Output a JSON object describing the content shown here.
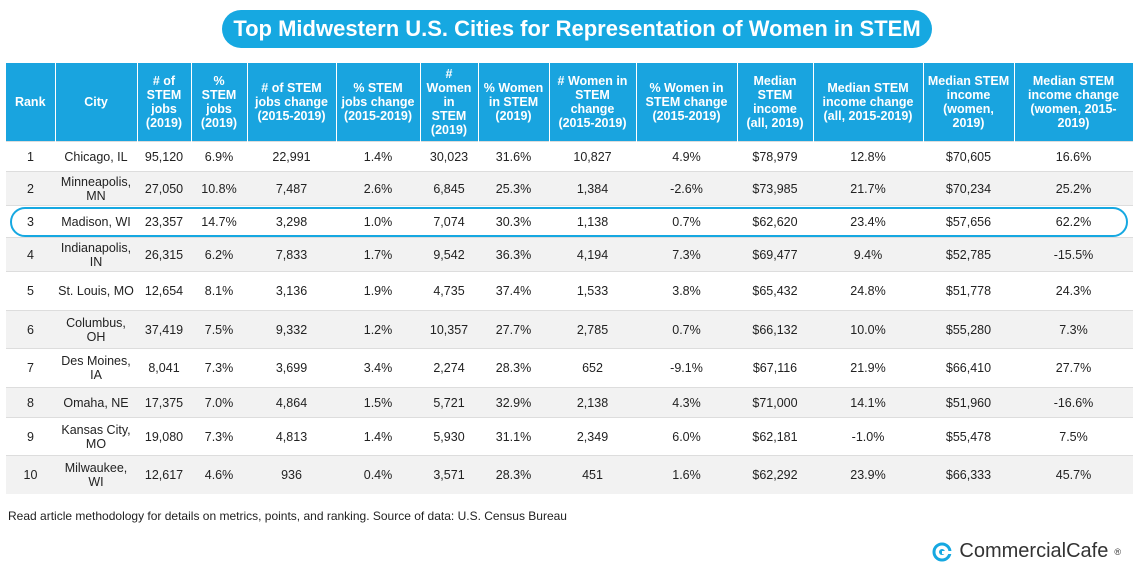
{
  "title": "Top Midwestern U.S. Cities for Representation of Women in STEM",
  "table": {
    "header": [
      "Rank",
      "City",
      "# of STEM jobs (2019)",
      "% STEM jobs (2019)",
      "# of STEM jobs change (2015-2019)",
      "% STEM jobs change (2015-2019)",
      "# Women in STEM (2019)",
      "% Women in STEM (2019)",
      "# Women in STEM change (2015-2019)",
      "% Women in STEM change (2015-2019)",
      "Median STEM income (all, 2019)",
      "Median STEM income change (all, 2015-2019)",
      "Median STEM income (women, 2019)",
      "Median STEM income change (women, 2015-2019)"
    ],
    "rows": [
      [
        "1",
        "Chicago, IL",
        "95,120",
        "6.9%",
        "22,991",
        "1.4%",
        "30,023",
        "31.6%",
        "10,827",
        "4.9%",
        "$78,979",
        "12.8%",
        "$70,605",
        "16.6%"
      ],
      [
        "2",
        "Minneapolis, MN",
        "27,050",
        "10.8%",
        "7,487",
        "2.6%",
        "6,845",
        "25.3%",
        "1,384",
        "-2.6%",
        "$73,985",
        "21.7%",
        "$70,234",
        "25.2%"
      ],
      [
        "3",
        "Madison, WI",
        "23,357",
        "14.7%",
        "3,298",
        "1.0%",
        "7,074",
        "30.3%",
        "1,138",
        "0.7%",
        "$62,620",
        "23.4%",
        "$57,656",
        "62.2%"
      ],
      [
        "4",
        "Indianapolis, IN",
        "26,315",
        "6.2%",
        "7,833",
        "1.7%",
        "9,542",
        "36.3%",
        "4,194",
        "7.3%",
        "$69,477",
        "9.4%",
        "$52,785",
        "-15.5%"
      ],
      [
        "5",
        "St. Louis, MO",
        "12,654",
        "8.1%",
        "3,136",
        "1.9%",
        "4,735",
        "37.4%",
        "1,533",
        "3.8%",
        "$65,432",
        "24.8%",
        "$51,778",
        "24.3%"
      ],
      [
        "6",
        "Columbus, OH",
        "37,419",
        "7.5%",
        "9,332",
        "1.2%",
        "10,357",
        "27.7%",
        "2,785",
        "0.7%",
        "$66,132",
        "10.0%",
        "$55,280",
        "7.3%"
      ],
      [
        "7",
        "Des Moines, IA",
        "8,041",
        "7.3%",
        "3,699",
        "3.4%",
        "2,274",
        "28.3%",
        "652",
        "-9.1%",
        "$67,116",
        "21.9%",
        "$66,410",
        "27.7%"
      ],
      [
        "8",
        "Omaha, NE",
        "17,375",
        "7.0%",
        "4,864",
        "1.5%",
        "5,721",
        "32.9%",
        "2,138",
        "4.3%",
        "$71,000",
        "14.1%",
        "$51,960",
        "-16.6%"
      ],
      [
        "9",
        "Kansas City, MO",
        "19,080",
        "7.3%",
        "4,813",
        "1.4%",
        "5,930",
        "31.1%",
        "2,349",
        "6.0%",
        "$62,181",
        "-1.0%",
        "$55,478",
        "7.5%"
      ],
      [
        "10",
        "Milwaukee, WI",
        "12,617",
        "4.6%",
        "936",
        "0.4%",
        "3,571",
        "28.3%",
        "451",
        "1.6%",
        "$62,292",
        "23.9%",
        "$66,333",
        "45.7%"
      ]
    ]
  },
  "footnote": "Read article methodology for details on metrics, points, and ranking. Source of data: U.S. Census Bureau",
  "brand": {
    "name": "CommercialCafe",
    "mark": "®"
  }
}
